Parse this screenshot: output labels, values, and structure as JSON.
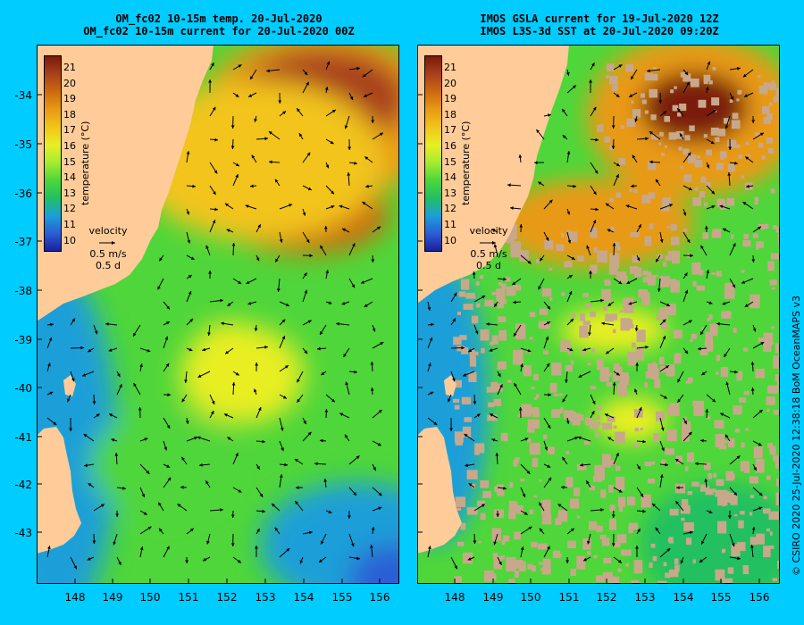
{
  "panels": {
    "left": {
      "title_line1": "OM_fc02 10-15m temp. 20-Jul-2020",
      "title_line2": "OM_fc02 10-15m current for 20-Jul-2020 00Z"
    },
    "right": {
      "title_line1": "IMOS GSLA current for 19-Jul-2020 12Z",
      "title_line2": "IMOS L3S-3d SST at 20-Jul-2020 09:20Z"
    }
  },
  "axes": {
    "lat_labels": [
      "-34",
      "-35",
      "-36",
      "-37",
      "-38",
      "-39",
      "-40",
      "-41",
      "-42",
      "-43"
    ],
    "lon_labels": [
      "148",
      "149",
      "150",
      "151",
      "152",
      "153",
      "154",
      "155",
      "156"
    ]
  },
  "colorbar": {
    "title": "temperature (°C)",
    "ticks": [
      "21",
      "20",
      "19",
      "18",
      "17",
      "16",
      "15",
      "14",
      "13",
      "12",
      "11",
      "10"
    ],
    "colors": [
      "#7a1a0a",
      "#a8401c",
      "#cc6a10",
      "#e89a14",
      "#f2c41a",
      "#e8ee24",
      "#a6ec30",
      "#4fd63a",
      "#22c060",
      "#1c9fd8",
      "#2b5fd6",
      "#1a1f9c"
    ]
  },
  "velocity_legend": {
    "label": "velocity",
    "speed": "0.5 m/s",
    "duration": "0.5 d"
  },
  "colors": {
    "background": "#00ccff",
    "land": "#ffcc99",
    "missing_data": "#c8a88a"
  },
  "credit": "© CSIRO 2020   25-Jul-2020 12:38:18 BoM OceanMAPS v3"
}
